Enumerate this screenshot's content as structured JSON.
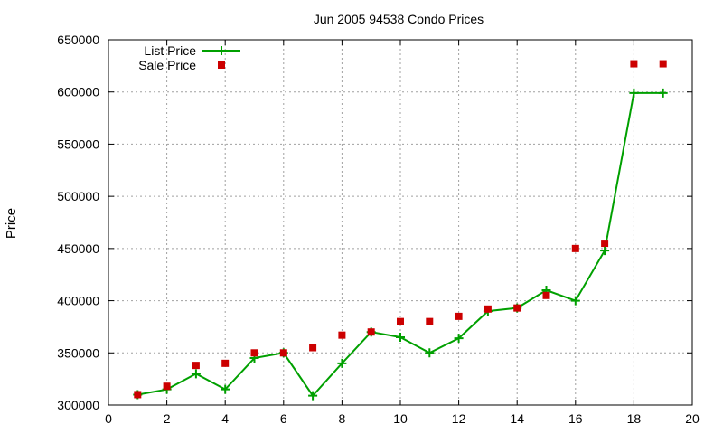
{
  "chart_data": {
    "type": "line",
    "title": "Jun 2005 94538 Condo Prices",
    "xlabel": "",
    "ylabel": "Price",
    "xlim": [
      0,
      20
    ],
    "ylim": [
      300000,
      650000
    ],
    "x_ticks": [
      0,
      2,
      4,
      6,
      8,
      10,
      12,
      14,
      16,
      18,
      20
    ],
    "y_ticks": [
      300000,
      350000,
      400000,
      450000,
      500000,
      550000,
      600000,
      650000
    ],
    "grid": true,
    "legend_position": "top-left",
    "series": [
      {
        "name": "List Price",
        "style": "lines+points",
        "marker": "plus",
        "color": "#00a000",
        "x": [
          1,
          2,
          3,
          4,
          5,
          6,
          7,
          8,
          9,
          10,
          11,
          12,
          13,
          14,
          15,
          16,
          17,
          18,
          19
        ],
        "y": [
          310000,
          315000,
          330000,
          315000,
          345000,
          350000,
          309000,
          340000,
          370000,
          365000,
          350000,
          364000,
          390000,
          393000,
          410000,
          400000,
          448000,
          599000,
          599000
        ]
      },
      {
        "name": "Sale Price",
        "style": "points",
        "marker": "square",
        "color": "#cc0000",
        "x": [
          1,
          2,
          3,
          4,
          5,
          6,
          7,
          8,
          9,
          10,
          11,
          12,
          13,
          14,
          15,
          16,
          17,
          18,
          19
        ],
        "y": [
          310000,
          318000,
          338000,
          340000,
          350000,
          350000,
          355000,
          367000,
          370000,
          380000,
          380000,
          385000,
          392000,
          393000,
          405000,
          450000,
          455000,
          627000,
          627000
        ]
      }
    ]
  }
}
